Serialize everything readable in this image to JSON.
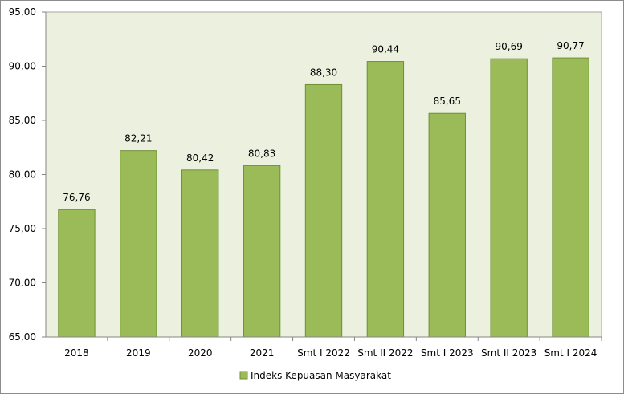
{
  "chart_data": {
    "type": "bar",
    "categories": [
      "2018",
      "2019",
      "2020",
      "2021",
      "Smt I 2022",
      "Smt II 2022",
      "Smt I 2023",
      "Smt II 2023",
      "Smt I 2024"
    ],
    "series": [
      {
        "name": "Indeks Kepuasan Masyarakat",
        "values": [
          76.76,
          82.21,
          80.42,
          80.83,
          88.3,
          90.44,
          85.65,
          90.69,
          90.77
        ],
        "value_labels": [
          "76,76",
          "82,21",
          "80,42",
          "80,83",
          "88,30",
          "90,44",
          "85,65",
          "90,69",
          "90,77"
        ],
        "color": "#9bbb59",
        "stroke": "#6f8f34"
      }
    ],
    "ylim": [
      65,
      95
    ],
    "yticks": [
      65,
      70,
      75,
      80,
      85,
      90,
      95
    ],
    "ytick_labels": [
      "65,00",
      "70,00",
      "75,00",
      "80,00",
      "85,00",
      "90,00",
      "95,00"
    ],
    "plot_background": "#ebf1de",
    "grid": false,
    "legend_position": "bottom"
  }
}
